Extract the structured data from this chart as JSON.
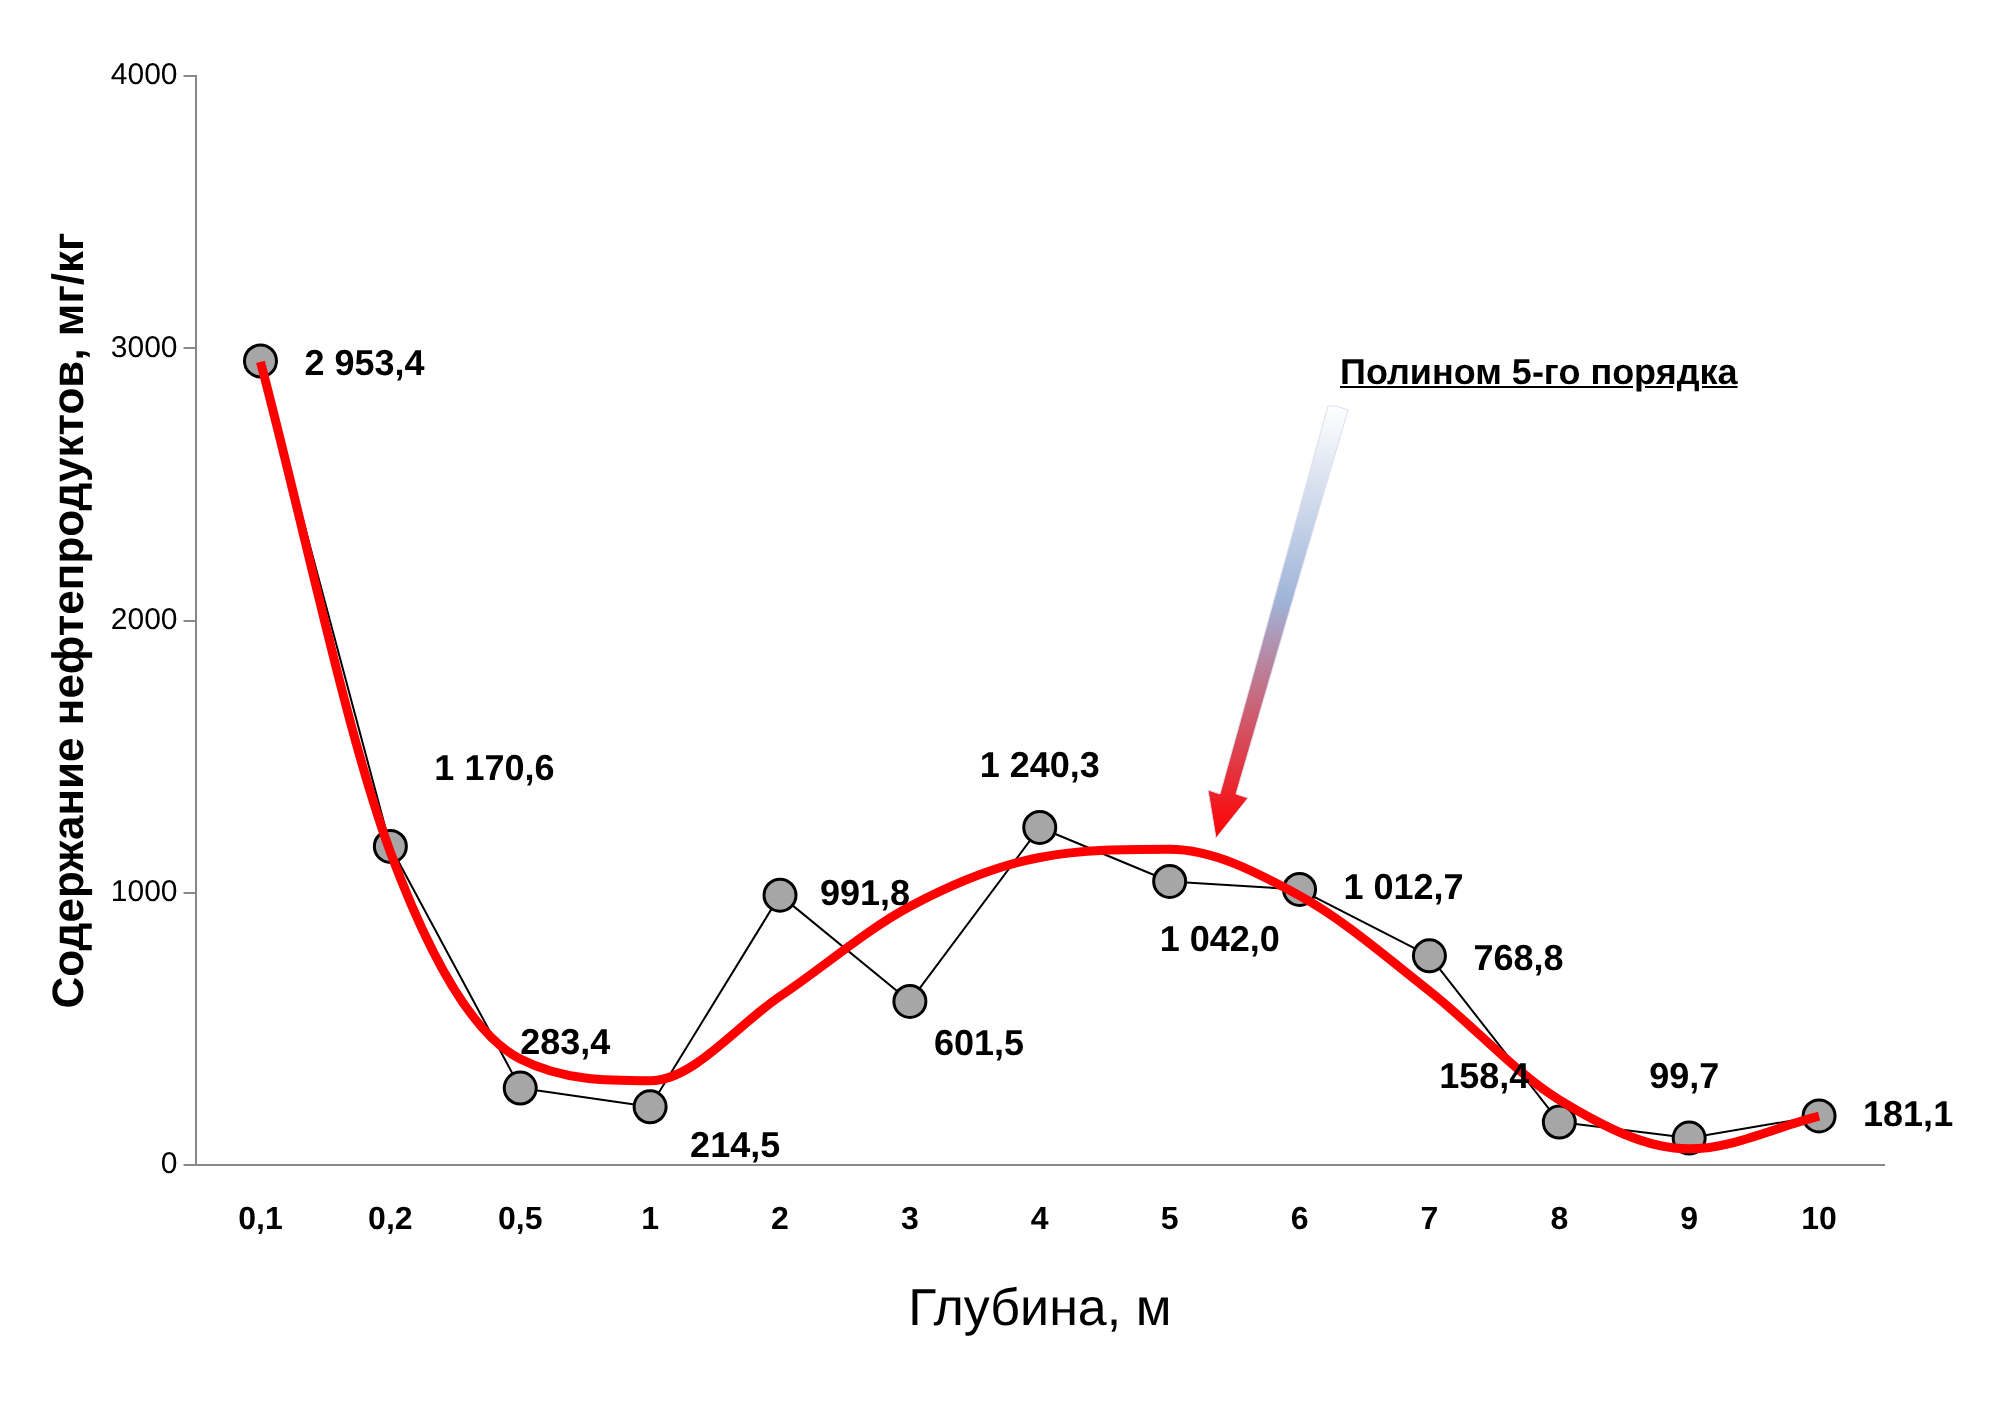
{
  "chart_data": {
    "type": "line",
    "xlabel": "Глубина, м",
    "ylabel": "Содержание нефтепродуктов, мг/кг",
    "categories": [
      "0,1",
      "0,2",
      "0,5",
      "1",
      "2",
      "3",
      "4",
      "5",
      "6",
      "7",
      "8",
      "9",
      "10"
    ],
    "ylim": [
      0,
      4000
    ],
    "yticks": [
      0,
      1000,
      2000,
      3000,
      4000
    ],
    "grid": false,
    "legend": false,
    "annotations": [
      "Полином 5-го порядка"
    ],
    "series": [
      {
        "color": "#a6a6a6",
        "marker": "circle",
        "values": [
          2953.4,
          1170.6,
          283.4,
          214.5,
          991.8,
          601.5,
          1240.3,
          1042.0,
          1012.7,
          768.8,
          158.4,
          99.7,
          181.1
        ],
        "value_labels": [
          "2 953,4",
          "1 170,6",
          "283,4",
          "214,5",
          "991,8",
          "601,5",
          "1 240,3",
          "1 042,0",
          "1 012,7",
          "768,8",
          "158,4",
          "99,7",
          "181,1"
        ]
      },
      {
        "type": "line",
        "color": "#ff0000",
        "marker": "none",
        "values": [
          2950,
          1150,
          390,
          310,
          620,
          950,
          1130,
          1160,
          990,
          640,
          240,
          60,
          180
        ]
      }
    ]
  }
}
